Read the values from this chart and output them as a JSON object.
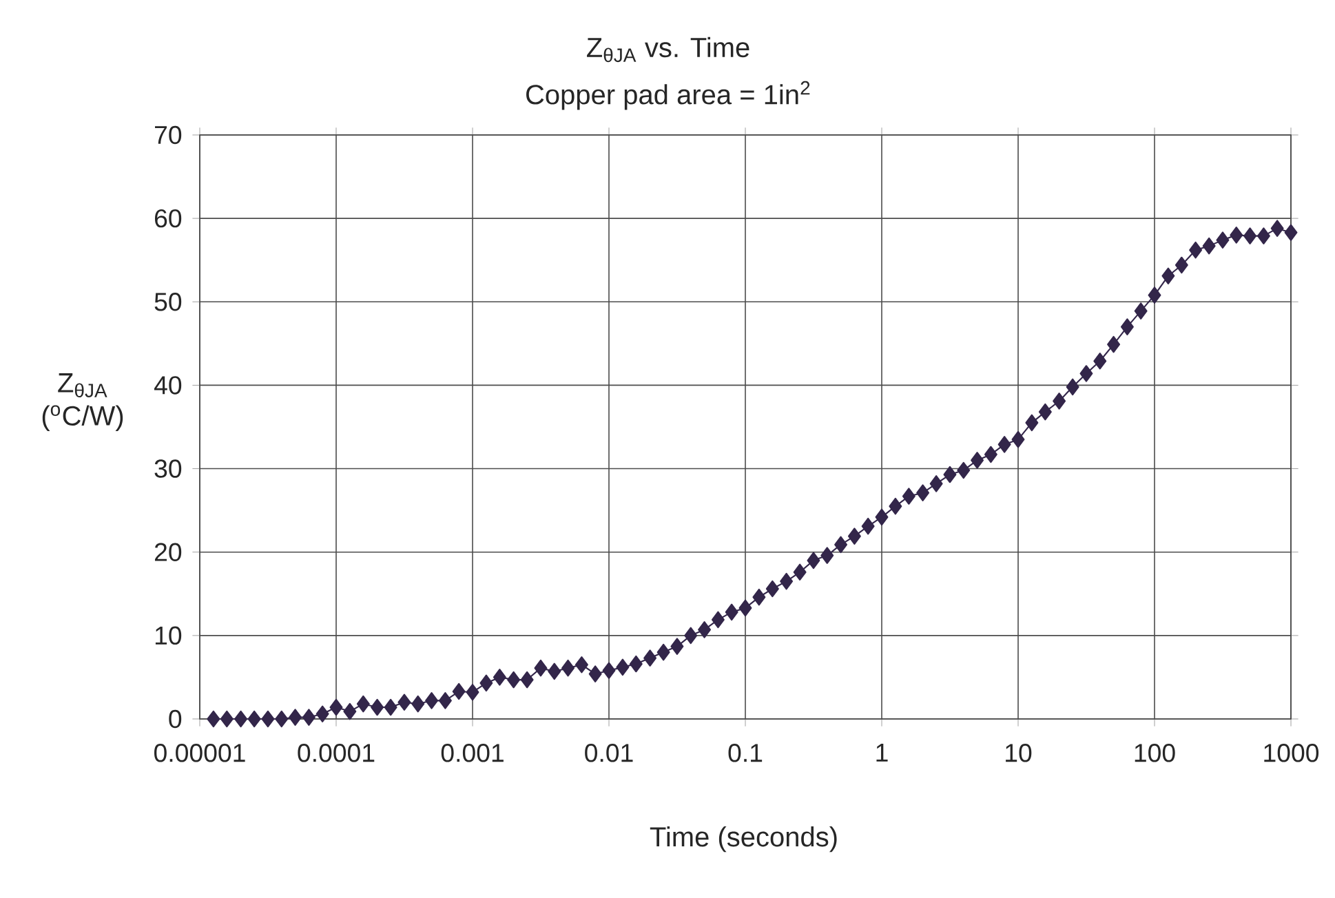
{
  "chart_data": {
    "type": "line",
    "title": "Z$_{θJA}$ vs. Time",
    "subtitle": "Copper pad area = 1in$^{2}$",
    "xlabel": "Time (seconds)",
    "ylabel": "Z$_{θJA}$ ($^{o}$C/W)",
    "x": [
      1.26e-05,
      1.58e-05,
      2e-05,
      2.51e-05,
      3.16e-05,
      3.98e-05,
      5.01e-05,
      6.31e-05,
      7.94e-05,
      0.0001,
      0.000126,
      0.000158,
      0.0002,
      0.000251,
      0.000316,
      0.000398,
      0.000501,
      0.000631,
      0.000794,
      0.001,
      0.00126,
      0.00158,
      0.002,
      0.00251,
      0.00316,
      0.00398,
      0.00501,
      0.00631,
      0.00794,
      0.01,
      0.0126,
      0.0158,
      0.02,
      0.0251,
      0.0316,
      0.0398,
      0.0501,
      0.0631,
      0.0794,
      0.1,
      0.126,
      0.158,
      0.2,
      0.251,
      0.316,
      0.398,
      0.501,
      0.631,
      0.794,
      1,
      1.26,
      1.58,
      2,
      2.51,
      3.16,
      3.98,
      5.01,
      6.31,
      7.94,
      10,
      12.6,
      15.8,
      20,
      25.1,
      31.6,
      39.8,
      50.1,
      63.1,
      79.4,
      100,
      126,
      158,
      200,
      251,
      316,
      398,
      501,
      631,
      794,
      1000
    ],
    "series": [
      {
        "color": "#33264a",
        "values": [
          0,
          0,
          0,
          0,
          0,
          0,
          0.2,
          0.2,
          0.6,
          1.4,
          0.9,
          1.8,
          1.4,
          1.4,
          2.0,
          1.8,
          2.2,
          2.2,
          3.3,
          3.2,
          4.3,
          5.0,
          4.7,
          4.7,
          6.1,
          5.7,
          6.1,
          6.5,
          5.4,
          5.8,
          6.2,
          6.6,
          7.3,
          8.0,
          8.7,
          10.0,
          10.7,
          11.9,
          12.8,
          13.3,
          14.6,
          15.6,
          16.5,
          17.6,
          19.0,
          19.6,
          20.9,
          21.9,
          23.1,
          24.2,
          25.5,
          26.7,
          27.1,
          28.2,
          29.3,
          29.8,
          31.0,
          31.7,
          32.9,
          33.5,
          35.5,
          36.8,
          38.1,
          39.8,
          41.4,
          42.9,
          44.9,
          47.0,
          48.9,
          50.8,
          53.1,
          54.4,
          56.2,
          56.7,
          57.4,
          58.0,
          57.9,
          57.9,
          58.8,
          58.3
        ]
      }
    ],
    "xlim": [
      1e-05,
      1000
    ],
    "xticks": [
      {
        "value": 1e-05,
        "label": "0.00001"
      },
      {
        "value": 0.0001,
        "label": "0.0001"
      },
      {
        "value": 0.001,
        "label": "0.001"
      },
      {
        "value": 0.01,
        "label": "0.01"
      },
      {
        "value": 0.1,
        "label": "0.1"
      },
      {
        "value": 1,
        "label": "1"
      },
      {
        "value": 10,
        "label": "10"
      },
      {
        "value": 100,
        "label": "100"
      },
      {
        "value": 1000,
        "label": "1000"
      }
    ],
    "ylim": [
      0,
      70
    ],
    "yticks": [
      0,
      10,
      20,
      30,
      40,
      50,
      60,
      70
    ],
    "log": "x",
    "grid": true,
    "marker": "diamond",
    "line_style": "solid"
  }
}
